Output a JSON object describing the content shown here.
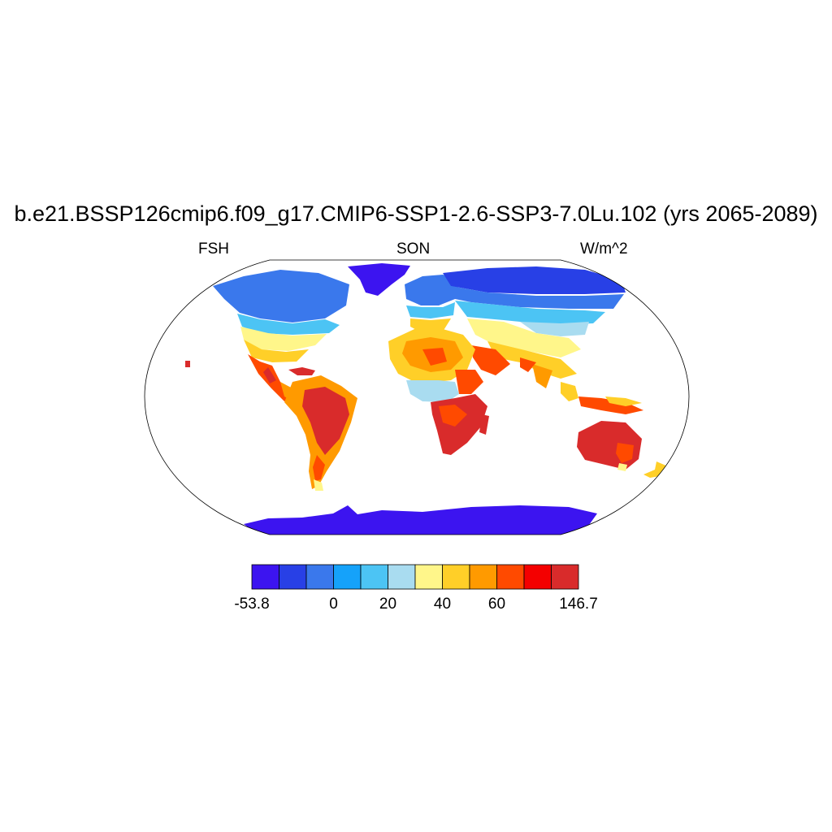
{
  "title": "b.e21.BSSP126cmip6.f09_g17.CMIP6-SSP1-2.6-SSP3-7.0Lu.102 (yrs 2065-2089)",
  "subtitles": {
    "left": "FSH",
    "center": "SON",
    "right": "W/m^2"
  },
  "colorbar": {
    "colors": [
      "#3c14f0",
      "#2840e6",
      "#3a78ec",
      "#15a2fa",
      "#4cc4f4",
      "#a9dcf0",
      "#fff68a",
      "#ffcf28",
      "#ff9a00",
      "#ff4a00",
      "#f40000",
      "#d92b2b"
    ],
    "labels": [
      "-53.8",
      "0",
      "20",
      "40",
      "60",
      "146.7"
    ]
  }
}
